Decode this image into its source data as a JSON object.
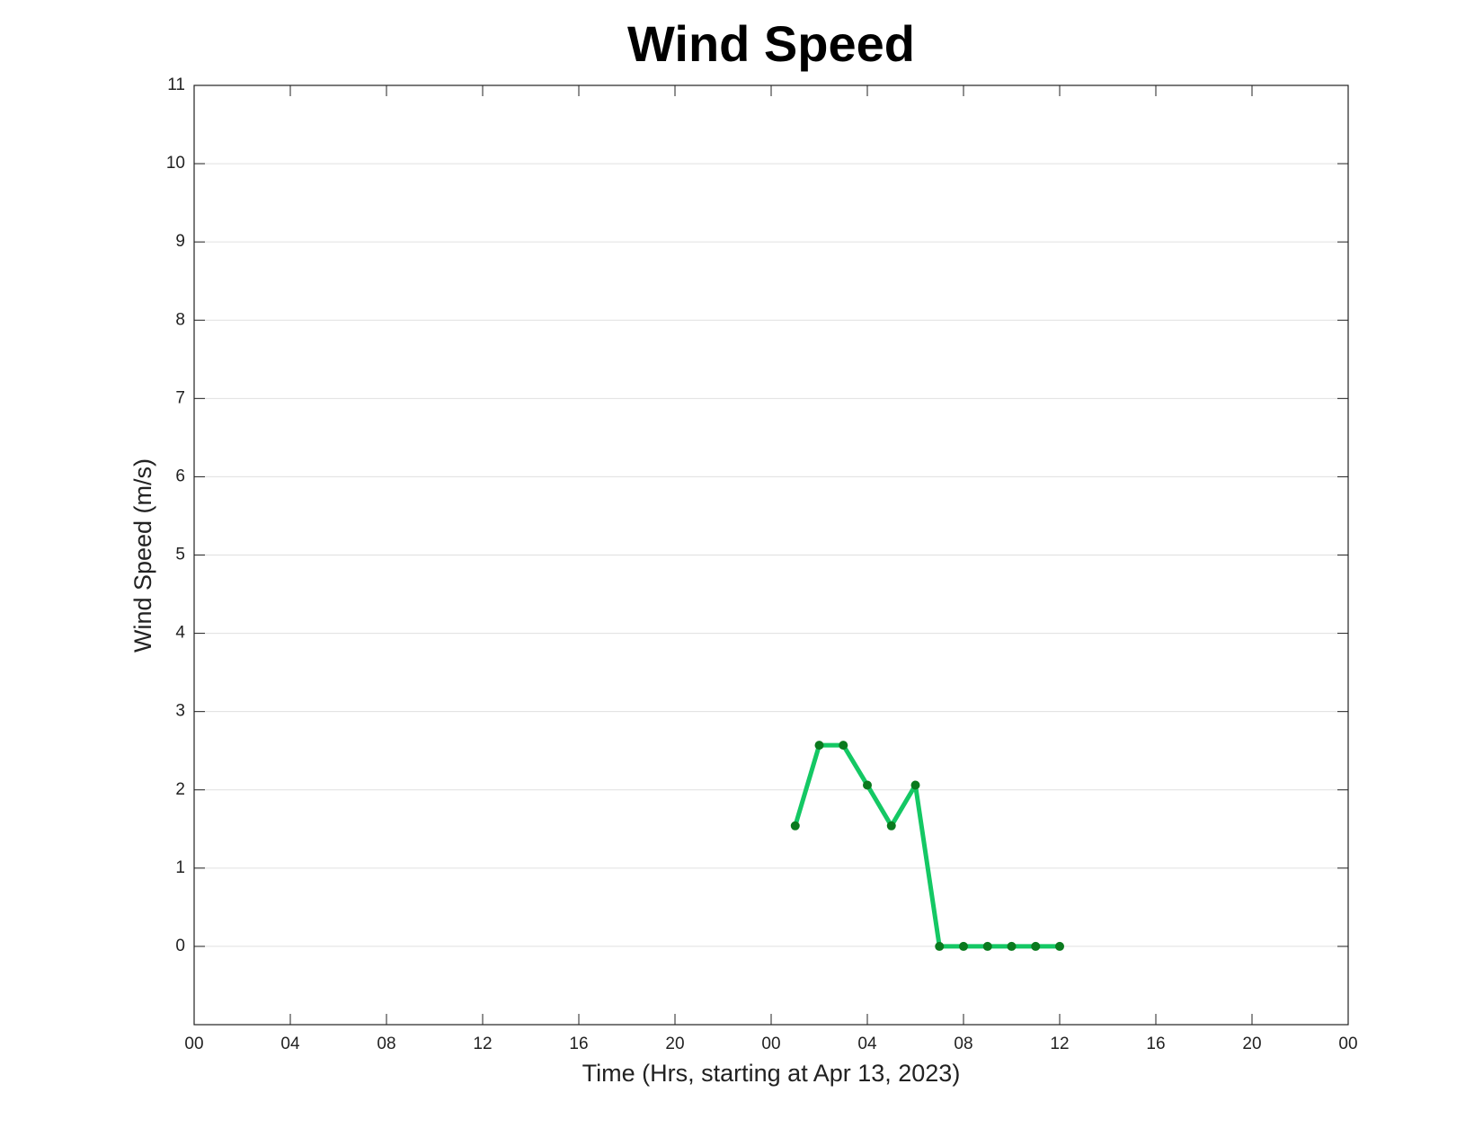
{
  "chart_data": {
    "type": "line",
    "title": "Wind Speed",
    "x_label": "Time (Hrs, starting at Apr 13, 2023)",
    "y_label": "Wind Speed (m/s)",
    "x": [
      25,
      26,
      27,
      28,
      29,
      30,
      31,
      32,
      33,
      34,
      35,
      36
    ],
    "values": [
      1.54,
      2.57,
      2.57,
      2.06,
      1.54,
      2.06,
      0,
      0,
      0,
      0,
      0,
      0
    ],
    "color": "#14c864",
    "marker_color": "#0a7a1e",
    "xlim": [
      0,
      48
    ],
    "xticks": [
      {
        "value": 0,
        "label": "00"
      },
      {
        "value": 4,
        "label": "04"
      },
      {
        "value": 8,
        "label": "08"
      },
      12,
      16,
      20,
      {
        "value": 24,
        "label": "00"
      },
      {
        "value": 28,
        "label": "04"
      },
      {
        "value": 32,
        "label": "08"
      },
      {
        "value": 36,
        "label": "12"
      },
      {
        "value": 40,
        "label": "16"
      },
      {
        "value": 44,
        "label": "20"
      },
      {
        "value": 48,
        "label": "00"
      }
    ],
    "ylim": [
      -1,
      11
    ],
    "yticks": [
      0,
      1,
      2,
      3,
      4,
      5,
      6,
      7,
      8,
      9,
      10,
      11
    ],
    "grid": true
  }
}
